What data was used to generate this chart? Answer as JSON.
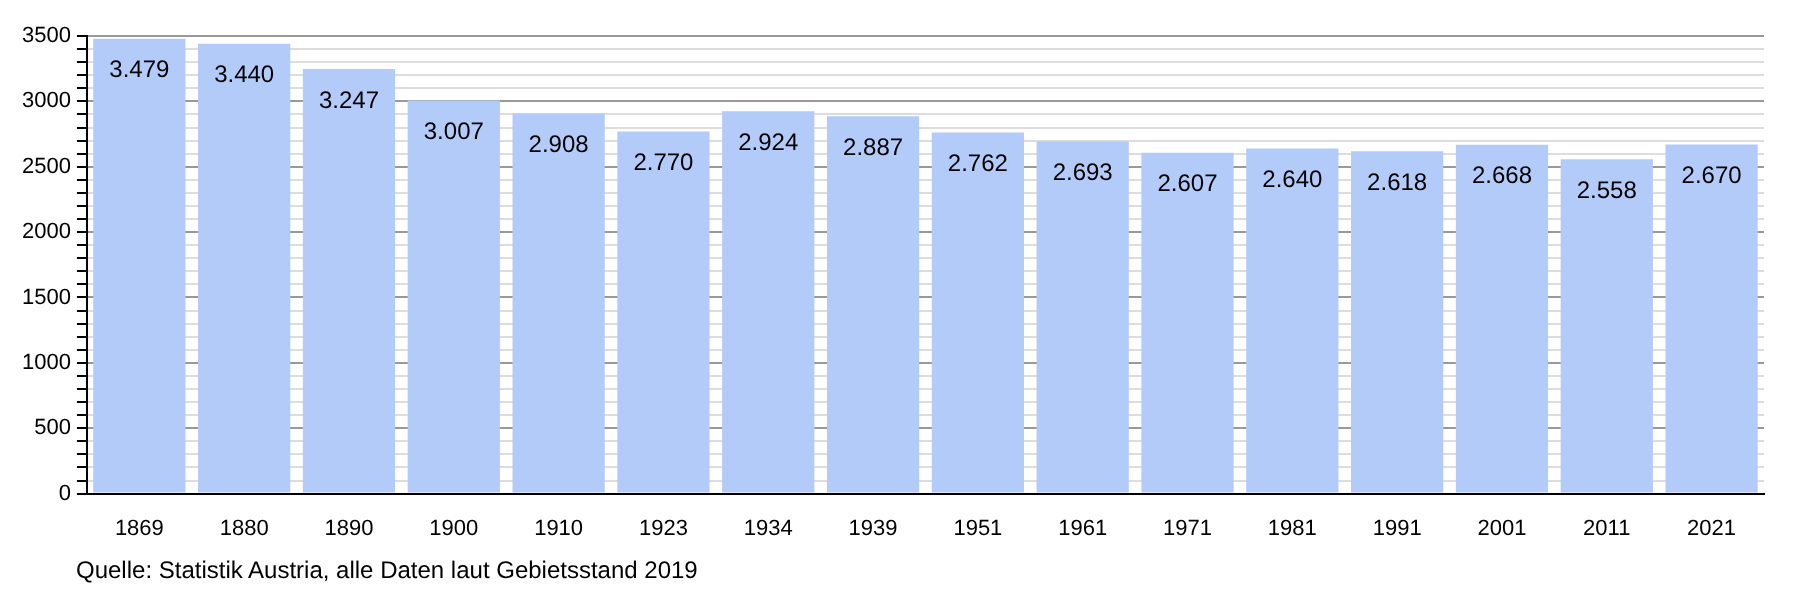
{
  "chart_data": {
    "type": "bar",
    "categories": [
      "1869",
      "1880",
      "1890",
      "1900",
      "1910",
      "1923",
      "1934",
      "1939",
      "1951",
      "1961",
      "1971",
      "1981",
      "1991",
      "2001",
      "2011",
      "2021"
    ],
    "values": [
      3479,
      3440,
      3247,
      3007,
      2908,
      2770,
      2924,
      2887,
      2762,
      2693,
      2607,
      2640,
      2618,
      2668,
      2558,
      2670
    ],
    "value_labels": [
      "3.479",
      "3.440",
      "3.247",
      "3.007",
      "2.908",
      "2.770",
      "2.924",
      "2.887",
      "2.762",
      "2.693",
      "2.607",
      "2.640",
      "2.618",
      "2.668",
      "2.558",
      "2.670"
    ],
    "color": "#b3cbf9",
    "ylim": [
      0,
      3500
    ],
    "yticks": [
      0,
      {
        "value": 100,
        "label": null
      },
      {
        "value": 200,
        "label": null
      },
      {
        "value": 300,
        "label": null
      },
      {
        "value": 400,
        "label": null
      },
      500,
      {
        "value": 600,
        "label": null
      },
      {
        "value": 700,
        "label": null
      },
      {
        "value": 800,
        "label": null
      },
      {
        "value": 900,
        "label": null
      },
      1000,
      {
        "value": 1100,
        "label": null
      },
      {
        "value": 1200,
        "label": null
      },
      {
        "value": 1300,
        "label": null
      },
      {
        "value": 1400,
        "label": null
      },
      1500,
      {
        "value": 1600,
        "label": null
      },
      {
        "value": 1700,
        "label": null
      },
      {
        "value": 1800,
        "label": null
      },
      {
        "value": 1900,
        "label": null
      },
      2000,
      {
        "value": 2100,
        "label": null
      },
      {
        "value": 2200,
        "label": null
      },
      {
        "value": 2300,
        "label": null
      },
      {
        "value": 2400,
        "label": null
      },
      2500,
      {
        "value": 2600,
        "label": null
      },
      {
        "value": 2700,
        "label": null
      },
      {
        "value": 2800,
        "label": null
      },
      {
        "value": 2900,
        "label": null
      },
      3000,
      {
        "value": 3100,
        "label": null
      },
      {
        "value": 3200,
        "label": null
      },
      {
        "value": 3300,
        "label": null
      },
      {
        "value": 3400,
        "label": null
      },
      3500
    ],
    "grid": "y",
    "annotations": [
      "Quelle: Statistik Austria, alle Daten laut Gebietsstand 2019"
    ]
  }
}
